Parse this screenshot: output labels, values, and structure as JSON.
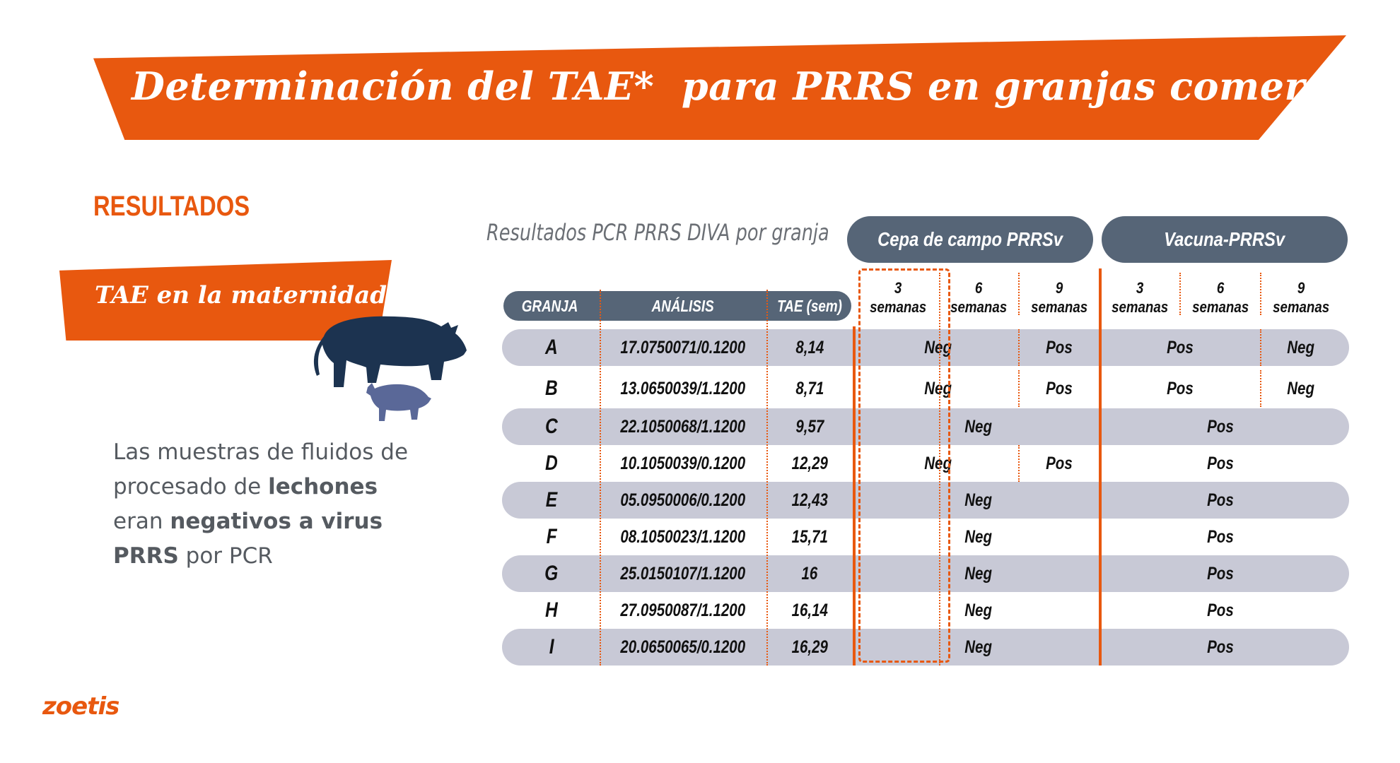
{
  "title": "Determinación del TAE*  para PRRS en granjas comerciales",
  "results_heading": "RESULTADOS",
  "tae_banner": "TAE en la maternidad",
  "description": {
    "part1": "Las muestras de fluidos de procesado de ",
    "bold1": "lechones",
    "part2": " eran ",
    "bold2": "negativos a virus PRRS",
    "part3": " por PCR"
  },
  "logo": "zoetis",
  "table": {
    "caption": "Resultados PCR PRRS DIVA por granja",
    "groups": {
      "field": "Cepa de campo PRRSv",
      "vaccine": "Vacuna-PRRSv"
    },
    "columns": {
      "farm": "GRANJA",
      "analysis": "ANÁLISIS",
      "tae": "TAE (sem)"
    },
    "weeks": [
      {
        "num": "3",
        "label": "semanas"
      },
      {
        "num": "6",
        "label": "semanas"
      },
      {
        "num": "9",
        "label": "semanas"
      },
      {
        "num": "3",
        "label": "semanas"
      },
      {
        "num": "6",
        "label": "semanas"
      },
      {
        "num": "9",
        "label": "semanas"
      }
    ],
    "rows": [
      {
        "farm": "A",
        "analysis": "17.0750071/0.1200",
        "tae": "8,14",
        "field_split": true,
        "field_a": "Neg",
        "field_b": "Pos",
        "vac_split": true,
        "vac_a": "Pos",
        "vac_b": "Neg"
      },
      {
        "farm": "B",
        "analysis": "13.0650039/1.1200",
        "tae": "8,71",
        "field_split": true,
        "field_a": "Neg",
        "field_b": "Pos",
        "vac_split": true,
        "vac_a": "Pos",
        "vac_b": "Neg"
      },
      {
        "farm": "C",
        "analysis": "22.1050068/1.1200",
        "tae": "9,57",
        "field_split": false,
        "field_a": "Neg",
        "vac_split": false,
        "vac_a": "Pos"
      },
      {
        "farm": "D",
        "analysis": "10.1050039/0.1200",
        "tae": "12,29",
        "field_split": true,
        "field_a": "Neg",
        "field_b": "Pos",
        "vac_split": false,
        "vac_a": "Pos"
      },
      {
        "farm": "E",
        "analysis": "05.0950006/0.1200",
        "tae": "12,43",
        "field_split": false,
        "field_a": "Neg",
        "vac_split": false,
        "vac_a": "Pos"
      },
      {
        "farm": "F",
        "analysis": "08.1050023/1.1200",
        "tae": "15,71",
        "field_split": false,
        "field_a": "Neg",
        "vac_split": false,
        "vac_a": "Pos"
      },
      {
        "farm": "G",
        "analysis": "25.0150107/1.1200",
        "tae": "16",
        "field_split": false,
        "field_a": "Neg",
        "vac_split": false,
        "vac_a": "Pos"
      },
      {
        "farm": "H",
        "analysis": "27.0950087/1.1200",
        "tae": "16,14",
        "field_split": false,
        "field_a": "Neg",
        "vac_split": false,
        "vac_a": "Pos"
      },
      {
        "farm": "I",
        "analysis": "20.0650065/0.1200",
        "tae": "16,29",
        "field_split": false,
        "field_a": "Neg",
        "vac_split": false,
        "vac_a": "Pos"
      }
    ]
  },
  "colors": {
    "accent": "#e8580f",
    "header_fill": "#566577",
    "row_band": "#c8c9d6",
    "sow": "#1c3350",
    "piglet": "#5a6898"
  }
}
